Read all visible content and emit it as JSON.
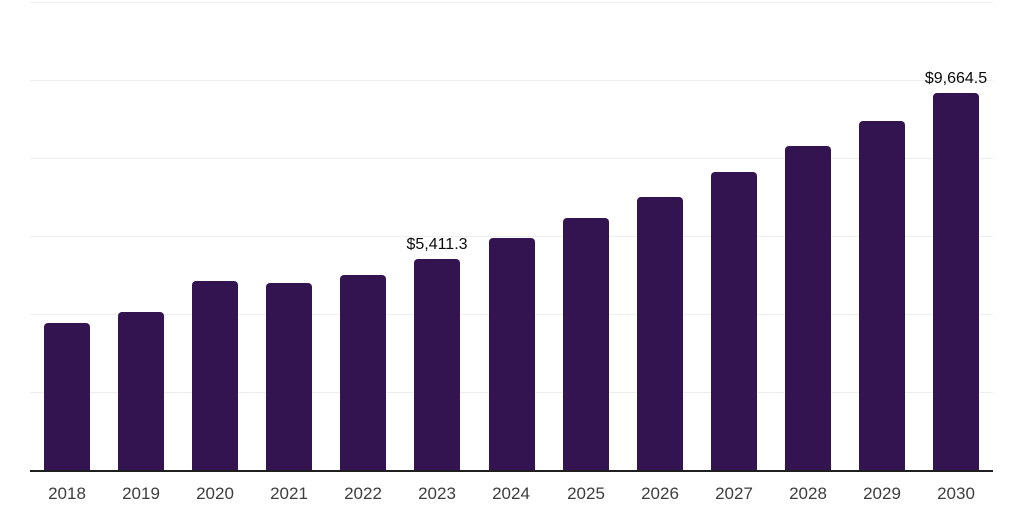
{
  "chart_data": {
    "type": "bar",
    "categories": [
      "2018",
      "2019",
      "2020",
      "2021",
      "2022",
      "2023",
      "2024",
      "2025",
      "2026",
      "2027",
      "2028",
      "2029",
      "2030"
    ],
    "values": [
      3760,
      4050,
      4840,
      4790,
      5000,
      5411.3,
      5940,
      6450,
      7000,
      7630,
      8300,
      8960,
      9664.5
    ],
    "data_labels": {
      "2023": "$5,411.3",
      "2030": "$9,664.5"
    },
    "title": "",
    "xlabel": "",
    "ylabel": "",
    "ylim": [
      0,
      12000
    ],
    "grid_step": 2000,
    "grid": true,
    "legend": false,
    "colors": {
      "bar": "#341450",
      "axis_line": "#1f1f1f",
      "gridline": "#ededed",
      "tick_label": "#3d3d3d",
      "data_label": "#0a0a0a",
      "background": "#ffffff"
    }
  }
}
